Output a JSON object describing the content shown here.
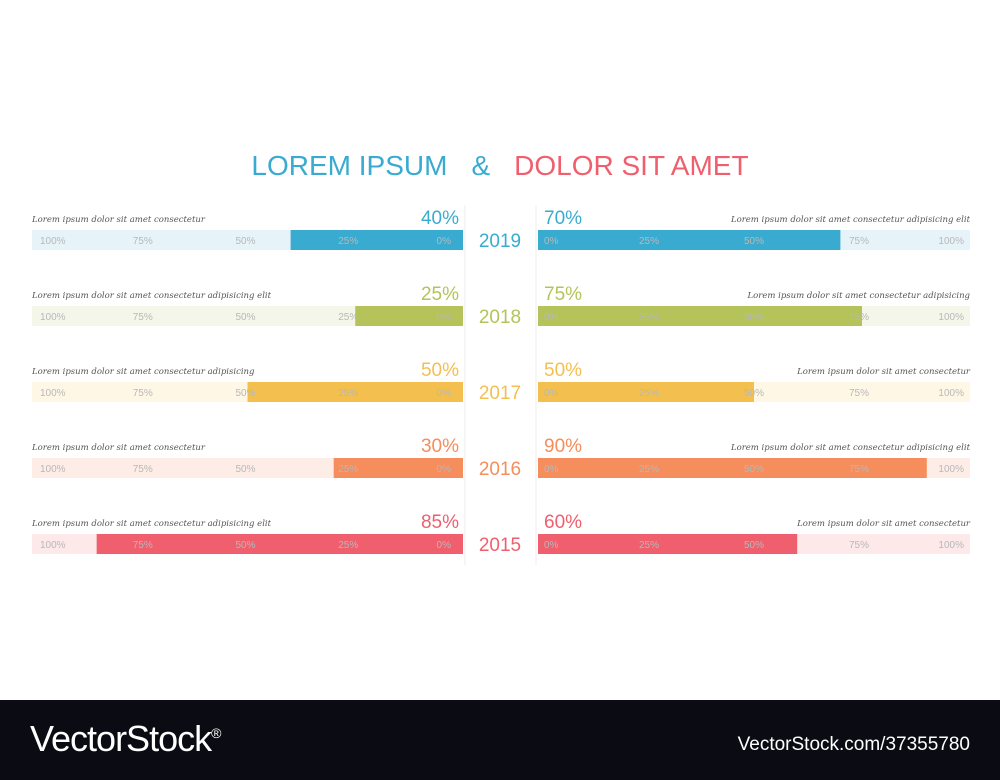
{
  "chart_data": {
    "type": "bar",
    "title_left": "LOREM IPSUM",
    "title_sep": "&",
    "title_right": "DOLOR SIT AMET",
    "tick_labels_left": [
      "100%",
      "75%",
      "50%",
      "25%",
      "0%"
    ],
    "tick_labels_right": [
      "0%",
      "25%",
      "50%",
      "75%",
      "100%"
    ],
    "xlim": [
      0,
      100
    ],
    "rows": [
      {
        "year": "2019",
        "left_value": 40,
        "left_label": "40%",
        "right_value": 70,
        "right_label": "70%",
        "left_note": "Lorem ipsum dolor sit amet consectetur",
        "right_note": "Lorem ipsum dolor sit amet consectetur adipisicing elit",
        "color": "#3aabd0",
        "track": "#e6f4f9"
      },
      {
        "year": "2018",
        "left_value": 25,
        "left_label": "25%",
        "right_value": 75,
        "right_label": "75%",
        "left_note": "Lorem ipsum dolor sit amet consectetur adipisicing elit",
        "right_note": "Lorem ipsum dolor sit amet consectetur adipisicing",
        "color": "#b5c35a",
        "track": "#f4f6e9"
      },
      {
        "year": "2017",
        "left_value": 50,
        "left_label": "50%",
        "right_value": 50,
        "right_label": "50%",
        "left_note": "Lorem ipsum dolor sit amet consectetur adipisicing",
        "right_note": "Lorem ipsum dolor sit amet consectetur",
        "color": "#f3c04f",
        "track": "#fef7e6"
      },
      {
        "year": "2016",
        "left_value": 30,
        "left_label": "30%",
        "right_value": 90,
        "right_label": "90%",
        "left_note": "Lorem ipsum dolor sit amet consectetur",
        "right_note": "Lorem ipsum dolor sit amet consectetur adipisicing elit",
        "color": "#f58d5c",
        "track": "#fdede6"
      },
      {
        "year": "2015",
        "left_value": 85,
        "left_label": "85%",
        "right_value": 60,
        "right_label": "60%",
        "left_note": "Lorem ipsum dolor sit amet consectetur adipisicing elit",
        "right_note": "Lorem ipsum dolor sit amet consectetur",
        "color": "#ef5f6e",
        "track": "#fde8ea"
      }
    ],
    "colors": {
      "title_left": "#3aabd0",
      "title_sep": "#3aabd0",
      "title_right": "#ef5f6e"
    }
  },
  "footer": {
    "brand": "VectorStock",
    "brand_mark": "®",
    "url": "VectorStock.com/37355780"
  }
}
